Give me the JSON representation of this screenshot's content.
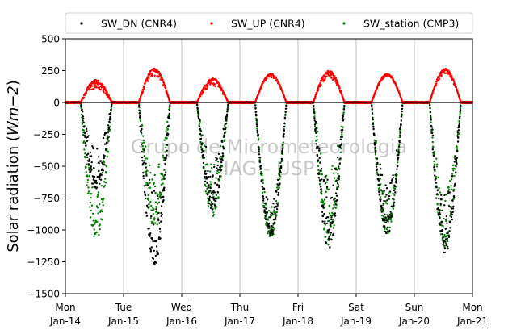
{
  "chart_data": {
    "type": "scatter",
    "title": "",
    "xlabel": "",
    "ylabel": "Solar radiation (Wm−2)",
    "ylabel_plain": "Solar radiation (",
    "ylabel_math": "Wm",
    "ylabel_exp": "−2",
    "ylabel_close": ")",
    "ylim": [
      -1500,
      500
    ],
    "yticks": [
      500,
      250,
      0,
      -250,
      -500,
      -750,
      -1000,
      -1250,
      -1500
    ],
    "ytick_labels": [
      "500",
      "250",
      "0",
      "−250",
      "−500",
      "−750",
      "−1000",
      "−1250",
      "−1500"
    ],
    "xlim": [
      "2020-01-14",
      "2020-01-21"
    ],
    "xticks": [
      {
        "day": "Mon",
        "date": "Jan-14"
      },
      {
        "day": "Tue",
        "date": "Jan-15"
      },
      {
        "day": "Wed",
        "date": "Jan-16"
      },
      {
        "day": "Thu",
        "date": "Jan-17"
      },
      {
        "day": "Fri",
        "date": "Jan-18"
      },
      {
        "day": "Sat",
        "date": "Jan-19"
      },
      {
        "day": "Sun",
        "date": "Jan-20"
      },
      {
        "day": "Mon",
        "date": "Jan-21"
      }
    ],
    "grid": "x",
    "legend_position": "top-center",
    "zero_line": true,
    "watermark": [
      "Grupo de Micrometeorologia",
      "IAG - USP"
    ],
    "series": [
      {
        "name": "SW_DN (CNR4)",
        "color": "#000000",
        "daily_peak_values": [
          -700,
          -1300,
          -850,
          -1050,
          -1150,
          -1050,
          -1200
        ],
        "daily_noise": [
          0.3,
          0.3,
          0.3,
          0.15,
          0.3,
          0.25,
          0.25
        ]
      },
      {
        "name": "SW_UP (CNR4)",
        "color": "#ff0000",
        "daily_peak_values": [
          180,
          270,
          190,
          225,
          250,
          225,
          265
        ],
        "daily_noise": [
          0.25,
          0.15,
          0.2,
          0.08,
          0.15,
          0.06,
          0.1
        ]
      },
      {
        "name": "SW_station (CMP3)",
        "color": "#008000",
        "daily_peak_values": [
          -1100,
          -1000,
          -900,
          -1080,
          -1150,
          -1040,
          -1150
        ],
        "daily_noise": [
          0.35,
          0.3,
          0.3,
          0.15,
          0.35,
          0.2,
          0.25
        ]
      }
    ],
    "daylight_hours": {
      "sunrise": 6.3,
      "sunset": 19.2
    }
  }
}
